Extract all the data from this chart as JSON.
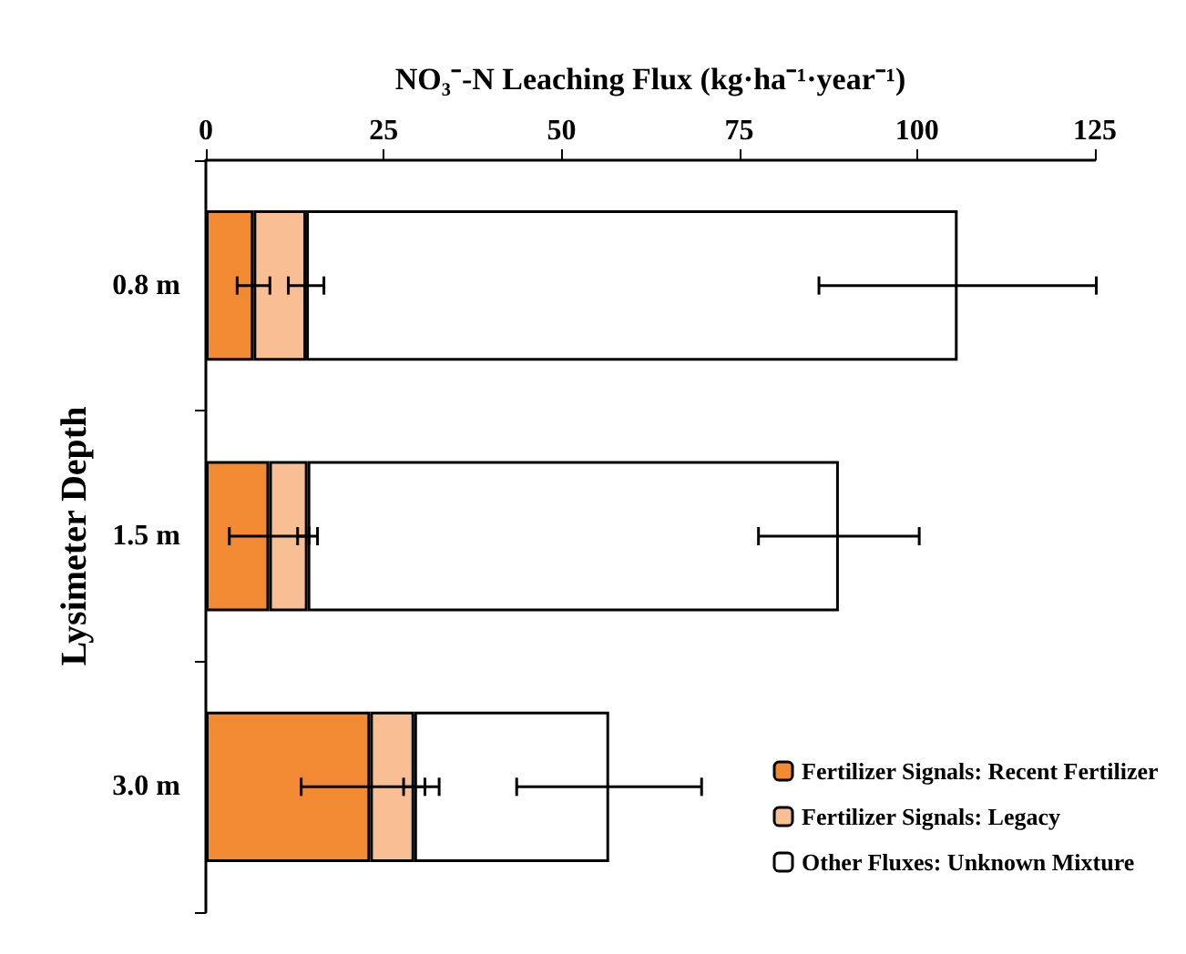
{
  "chart_data": {
    "type": "bar",
    "orientation": "horizontal",
    "stacked": true,
    "xlabel": "NO₃⁻-N Leaching Flux (kg·ha⁻¹·year⁻¹)",
    "ylabel": "Lysimeter Depth",
    "categories": [
      "0.8 m",
      "1.5 m",
      "3.0 m"
    ],
    "xlim": [
      0,
      125
    ],
    "xticks": [
      0,
      25,
      50,
      75,
      100,
      125
    ],
    "grid": false,
    "legend": "bottom right",
    "series": [
      {
        "name": "Fertilizer Signals: Recent Fertilizer",
        "color": "#f28a33",
        "values": [
          6.7,
          8.9,
          23.1
        ],
        "errors": [
          2.3,
          5.6,
          9.7
        ]
      },
      {
        "name": "Fertilizer Signals: Legacy",
        "color": "#f8bf94",
        "values": [
          7.4,
          5.4,
          6.2
        ],
        "errors": [
          2.5,
          1.4,
          1.5
        ]
      },
      {
        "name": "Other Fluxes: Unknown Mixture",
        "color": "#ffffff",
        "values": [
          91.6,
          74.7,
          27.4
        ],
        "errors": [
          19.5,
          11.3,
          13
        ]
      }
    ]
  }
}
